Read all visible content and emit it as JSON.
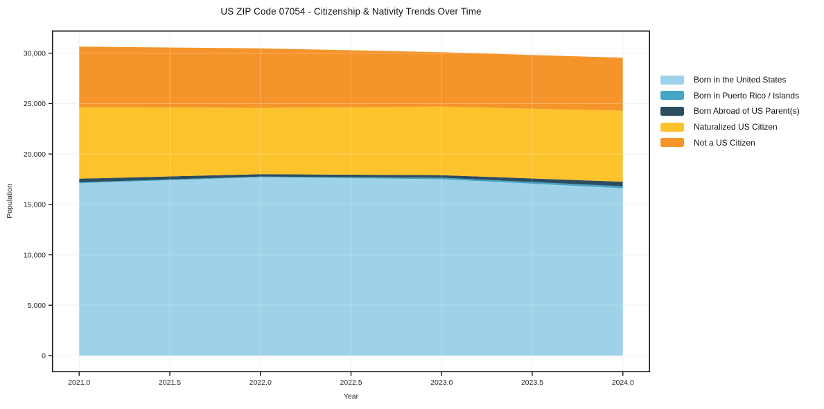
{
  "chart_data": {
    "type": "area",
    "stacked": true,
    "title": "US ZIP Code 07054 - Citizenship & Nativity Trends Over Time",
    "xlabel": "Year",
    "ylabel": "Population",
    "x": [
      2021,
      2022,
      2023,
      2024
    ],
    "series": [
      {
        "name": "Born in the United States",
        "color": "#9ED2E8",
        "values": [
          17100,
          17700,
          17500,
          16600
        ]
      },
      {
        "name": "Born in Puerto Rico / Islands",
        "color": "#46A4C4",
        "values": [
          100,
          60,
          150,
          200
        ]
      },
      {
        "name": "Born Abroad of US Parent(s)",
        "color": "#2C4D5F",
        "values": [
          350,
          240,
          250,
          450
        ]
      },
      {
        "name": "Naturalized US Citizen",
        "color": "#FCC32D",
        "values": [
          7100,
          6580,
          6800,
          7050
        ]
      },
      {
        "name": "Not a US Citizen",
        "color": "#F5942A",
        "values": [
          6000,
          5900,
          5400,
          5250
        ]
      }
    ],
    "totals": [
      30650,
      30480,
      30100,
      29550
    ],
    "xticks": [
      2021.0,
      2021.5,
      2022.0,
      2022.5,
      2023.0,
      2023.5,
      2024.0
    ],
    "xtick_labels": [
      "2021.0",
      "2021.5",
      "2022.0",
      "2022.5",
      "2023.0",
      "2023.5",
      "2024.0"
    ],
    "yticks": [
      0,
      5000,
      10000,
      15000,
      20000,
      25000,
      30000
    ],
    "ytick_labels": [
      "0",
      "5,000",
      "10,000",
      "15,000",
      "20,000",
      "25,000",
      "30,000"
    ],
    "xlim": [
      2020.85,
      2024.15
    ],
    "ylim": [
      -1650,
      32250
    ],
    "grid": true,
    "legend_position": "right"
  },
  "colors": {
    "background": "#ffffff",
    "spine": "#1a1a1a",
    "grid_under": "#ececec",
    "grid_over": "rgba(255,255,255,0.28)",
    "tick_text": "#262626"
  }
}
